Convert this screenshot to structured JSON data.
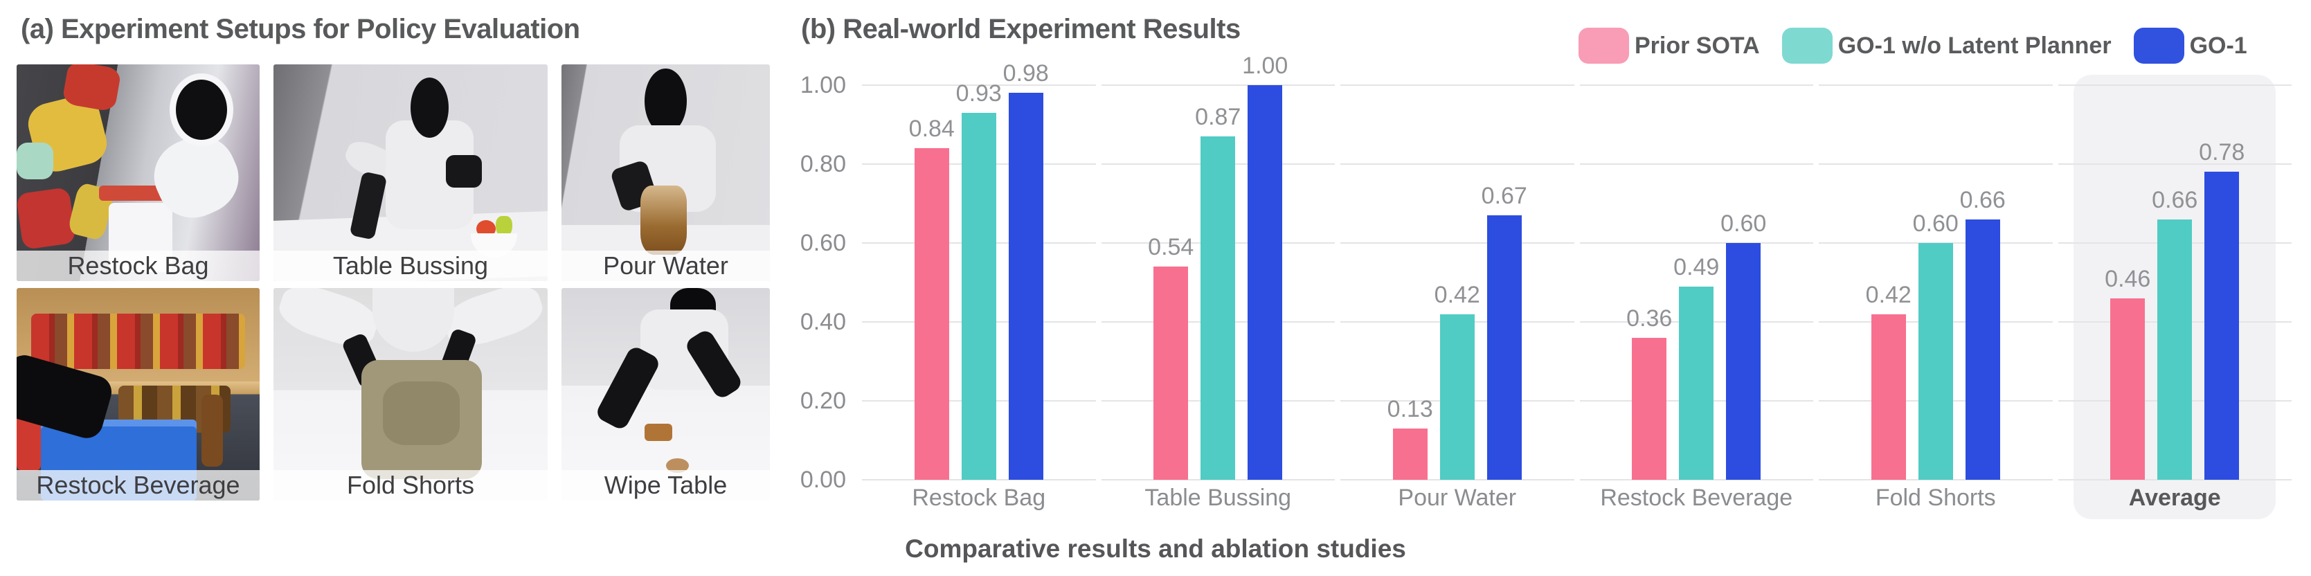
{
  "panel_a": {
    "title": "(a) Experiment Setups for Policy Evaluation",
    "photos": [
      {
        "label": "Restock Bag"
      },
      {
        "label": "Table Bussing"
      },
      {
        "label": "Pour Water"
      },
      {
        "label": "Restock Beverage"
      },
      {
        "label": "Fold Shorts"
      },
      {
        "label": "Wipe Table"
      }
    ]
  },
  "panel_b": {
    "title": "(b) Real-world Experiment Results",
    "caption": "Comparative results and ablation studies",
    "legend": [
      {
        "label": "Prior SOTA",
        "swatch_color": "#f99cb6"
      },
      {
        "label": "GO-1 w/o Latent Planner",
        "swatch_color": "#7ed9d1"
      },
      {
        "label": "GO-1",
        "swatch_color": "#3052df"
      }
    ]
  },
  "chart_data": {
    "type": "bar",
    "title": "(b) Real-world Experiment Results",
    "categories": [
      "Restock Bag",
      "Table Bussing",
      "Pour Water",
      "Restock Beverage",
      "Fold Shorts",
      "Average"
    ],
    "series": [
      {
        "name": "Prior SOTA",
        "color": "#f8708f",
        "values": [
          0.84,
          0.54,
          0.13,
          0.36,
          0.42,
          0.46
        ]
      },
      {
        "name": "GO-1 w/o Latent Planner",
        "color": "#50ccc4",
        "values": [
          0.93,
          0.87,
          0.42,
          0.49,
          0.6,
          0.66
        ]
      },
      {
        "name": "GO-1",
        "color": "#2c4ddf",
        "values": [
          0.98,
          1.0,
          0.67,
          0.6,
          0.66,
          0.78
        ]
      }
    ],
    "ylim": [
      0,
      1.0
    ],
    "yticks": [
      0.0,
      0.2,
      0.4,
      0.6,
      0.8,
      1.0
    ],
    "grid": true,
    "value_labels": true,
    "legend_position": "top-right",
    "highlighted_category": "Average",
    "xlabel": "",
    "ylabel": "",
    "gridline_color": "#e4e4e6",
    "value_label_color": "#8f9194",
    "tick_label_color": "#8a8c8f",
    "highlight_color": "#f2f2f4"
  }
}
